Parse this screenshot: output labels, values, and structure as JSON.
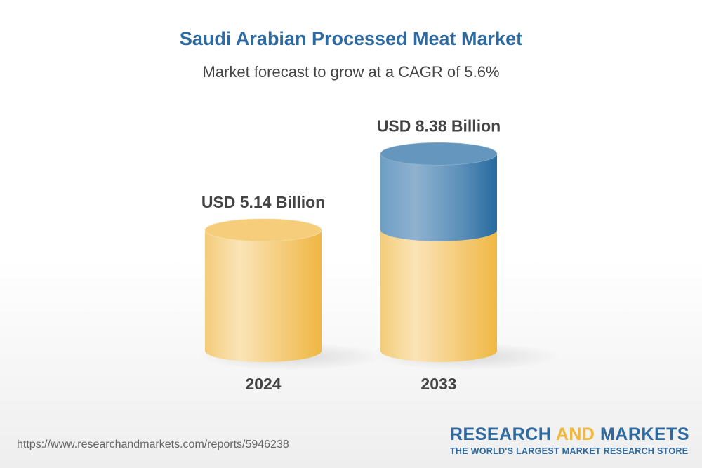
{
  "chart_data": {
    "type": "bar",
    "title": "Saudi Arabian Processed Meat Market",
    "subtitle": "Market forecast to grow at a CAGR of 5.6%",
    "categories": [
      "2024",
      "2033"
    ],
    "values": [
      5.14,
      8.38
    ],
    "data_labels": [
      "USD 5.14 Billion",
      "USD 8.38 Billion"
    ],
    "unit": "USD Billion",
    "style": "3d-cylinder",
    "colors": {
      "base": "#f0b73d",
      "growth": "#2e6aa0",
      "label": "#444444"
    }
  },
  "footer": {
    "url": "https://www.researchandmarkets.com/reports/5946238",
    "logo": {
      "word1": "RESEARCH",
      "word2": "AND",
      "word3": "MARKETS",
      "tagline": "THE WORLD'S LARGEST MARKET RESEARCH STORE"
    }
  }
}
